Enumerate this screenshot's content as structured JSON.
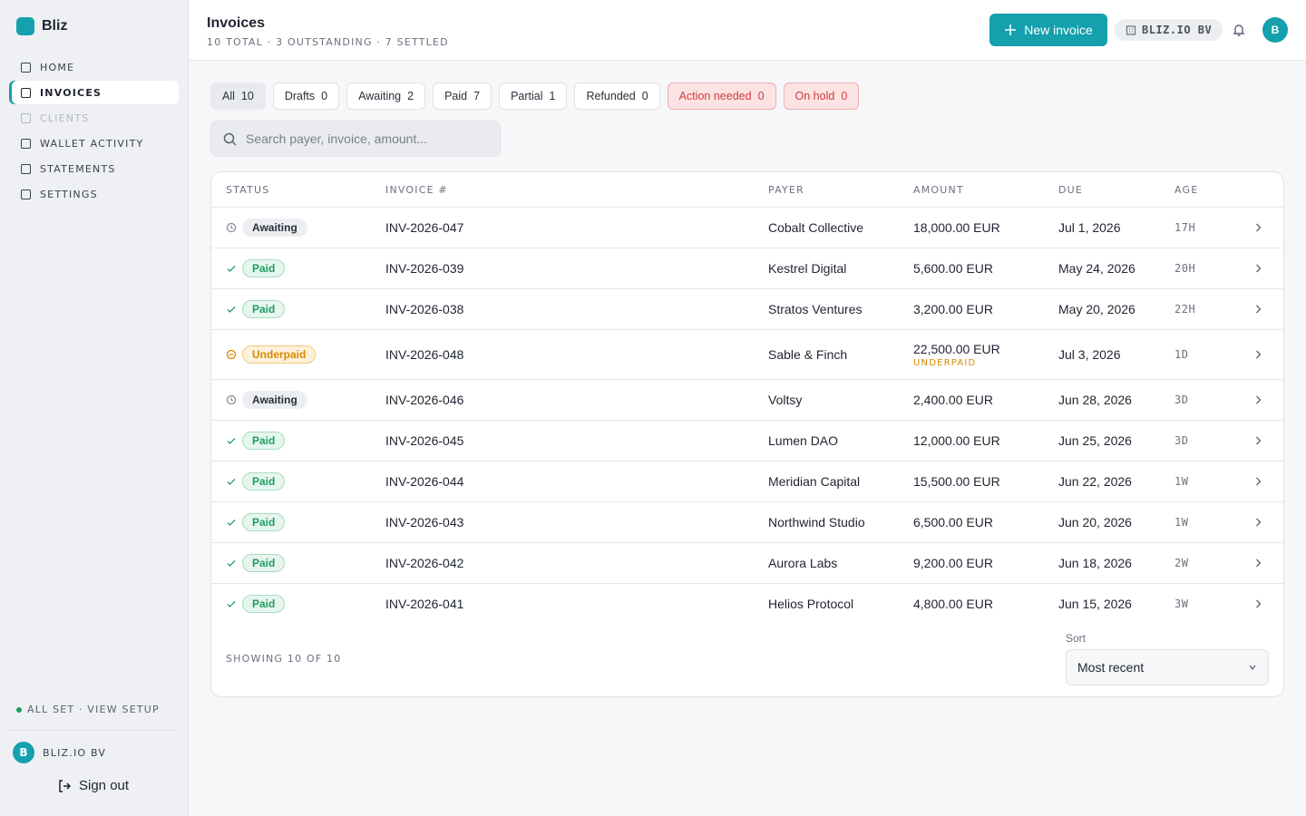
{
  "sidebar": {
    "brand": "Bliz",
    "nav": [
      {
        "label": "HOME"
      },
      {
        "label": "INVOICES",
        "active": true
      },
      {
        "label": "CLIENTS",
        "disabled": true
      },
      {
        "label": "WALLET ACTIVITY"
      },
      {
        "label": "STATEMENTS"
      },
      {
        "label": "SETTINGS"
      }
    ],
    "setup": "ALL SET · VIEW SETUP",
    "account": {
      "avatar": "B",
      "name": "BLIZ.IO BV"
    },
    "sign_out": "Sign out"
  },
  "header": {
    "title": "Invoices",
    "subtitle": "10 TOTAL · 3 OUTSTANDING · 7 SETTLED",
    "new_button": "New invoice",
    "org": "BLIZ.IO BV",
    "avatar": "B"
  },
  "filters": [
    {
      "label": "All",
      "count": 10,
      "current": true
    },
    {
      "label": "Drafts",
      "count": 0
    },
    {
      "label": "Awaiting",
      "count": 2
    },
    {
      "label": "Paid",
      "count": 7
    },
    {
      "label": "Partial",
      "count": 1
    },
    {
      "label": "Refunded",
      "count": 0
    },
    {
      "label": "Action needed",
      "count": 0,
      "alert": true
    },
    {
      "label": "On hold",
      "count": 0,
      "alert": true
    }
  ],
  "search_placeholder": "Search payer, invoice, amount...",
  "table": {
    "columns": [
      "STATUS",
      "INVOICE #",
      "PAYER",
      "AMOUNT",
      "DUE",
      "AGE"
    ],
    "rows": [
      {
        "status": "Awaiting",
        "tone": "neutral",
        "invoice": "INV-2026-047",
        "payer": "Cobalt Collective",
        "amount": "18,000.00 EUR",
        "due": "Jul 1, 2026",
        "age": "17H"
      },
      {
        "status": "Paid",
        "tone": "success",
        "invoice": "INV-2026-039",
        "payer": "Kestrel Digital",
        "amount": "5,600.00 EUR",
        "due": "May 24, 2026",
        "age": "20H"
      },
      {
        "status": "Paid",
        "tone": "success",
        "invoice": "INV-2026-038",
        "payer": "Stratos Ventures",
        "amount": "3,200.00 EUR",
        "due": "May 20, 2026",
        "age": "22H"
      },
      {
        "status": "Underpaid",
        "tone": "warning",
        "invoice": "INV-2026-048",
        "payer": "Sable & Finch",
        "amount": "22,500.00 EUR",
        "note": "UNDERPAID",
        "due": "Jul 3, 2026",
        "age": "1D"
      },
      {
        "status": "Awaiting",
        "tone": "neutral",
        "invoice": "INV-2026-046",
        "payer": "Voltsy",
        "amount": "2,400.00 EUR",
        "due": "Jun 28, 2026",
        "age": "3D"
      },
      {
        "status": "Paid",
        "tone": "success",
        "invoice": "INV-2026-045",
        "payer": "Lumen DAO",
        "amount": "12,000.00 EUR",
        "due": "Jun 25, 2026",
        "age": "3D"
      },
      {
        "status": "Paid",
        "tone": "success",
        "invoice": "INV-2026-044",
        "payer": "Meridian Capital",
        "amount": "15,500.00 EUR",
        "due": "Jun 22, 2026",
        "age": "1W"
      },
      {
        "status": "Paid",
        "tone": "success",
        "invoice": "INV-2026-043",
        "payer": "Northwind Studio",
        "amount": "6,500.00 EUR",
        "due": "Jun 20, 2026",
        "age": "1W"
      },
      {
        "status": "Paid",
        "tone": "success",
        "invoice": "INV-2026-042",
        "payer": "Aurora Labs",
        "amount": "9,200.00 EUR",
        "due": "Jun 18, 2026",
        "age": "2W"
      },
      {
        "status": "Paid",
        "tone": "success",
        "invoice": "INV-2026-041",
        "payer": "Helios Protocol",
        "amount": "4,800.00 EUR",
        "due": "Jun 15, 2026",
        "age": "3W"
      }
    ]
  },
  "footer": {
    "showing": "SHOWING 10 OF 10",
    "sort_label": "Sort",
    "sort_value": "Most recent"
  }
}
